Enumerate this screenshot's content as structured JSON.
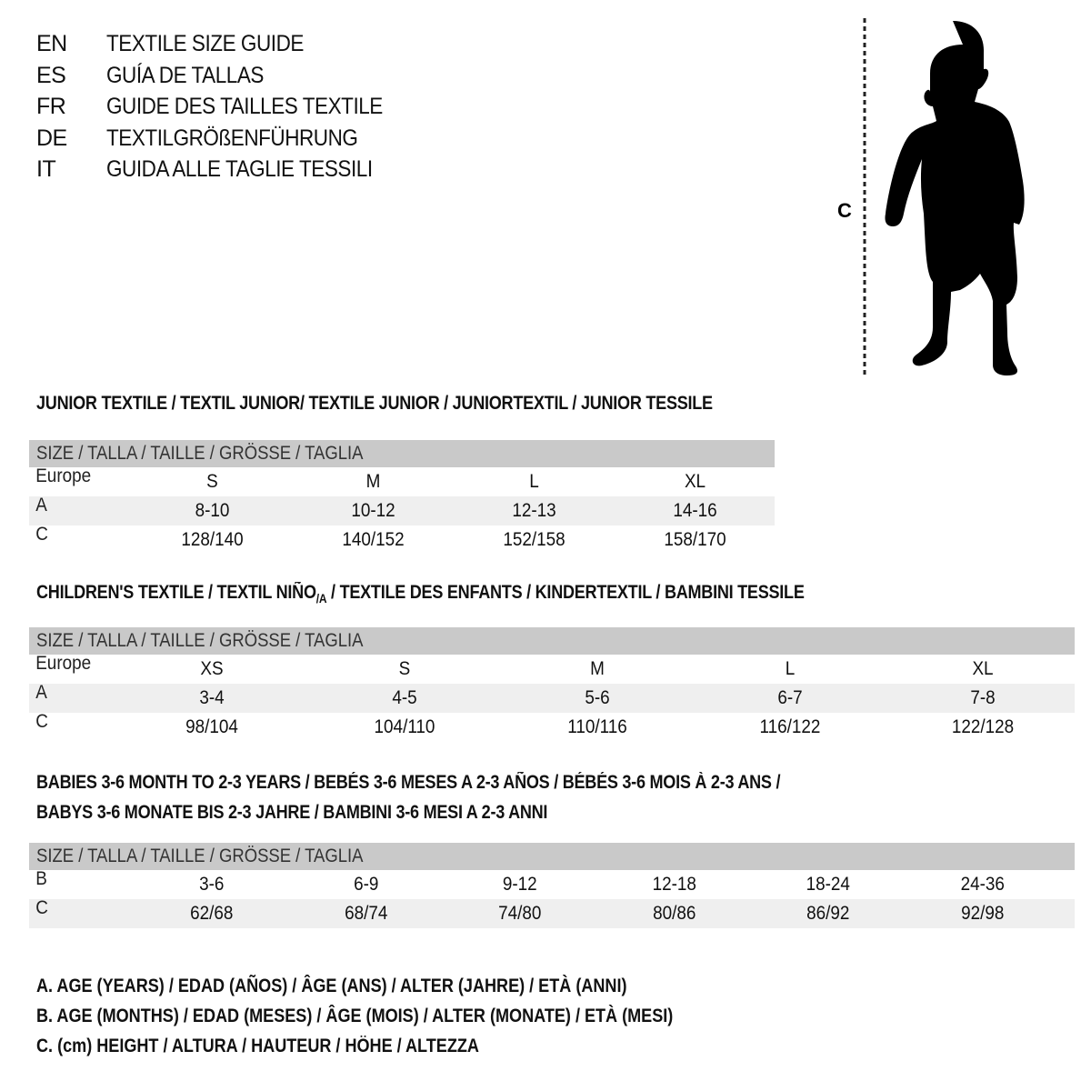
{
  "titles": [
    {
      "code": "EN",
      "text": "TEXTILE SIZE GUIDE"
    },
    {
      "code": "ES",
      "text": "GUÍA DE TALLAS"
    },
    {
      "code": "FR",
      "text": "GUIDE DES TAILLES TEXTILE"
    },
    {
      "code": "DE",
      "text": "TEXTILGRÖßENFÜHRUNG"
    },
    {
      "code": "IT",
      "text": "GUIDA ALLE TAGLIE TESSILI"
    }
  ],
  "figure": {
    "label": "C",
    "icon": "child-silhouette"
  },
  "junior": {
    "title": "JUNIOR TEXTILE / TEXTIL JUNIOR/ TEXTILE JUNIOR / JUNIORTEXTIL / JUNIOR TESSILE",
    "header": "SIZE / TALLA / TAILLE / GRÖSSE / TAGLIA",
    "rows": [
      {
        "label": "Europe",
        "cells": [
          "S",
          "M",
          "L",
          "XL"
        ]
      },
      {
        "label": "A",
        "cells": [
          "8-10",
          "10-12",
          "12-13",
          "14-16"
        ]
      },
      {
        "label": "C",
        "cells": [
          "128/140",
          "140/152",
          "152/158",
          "158/170"
        ]
      }
    ]
  },
  "children": {
    "title_a": "CHILDREN'S TEXTILE / TEXTIL NIÑO",
    "title_sub": "/A",
    "title_b": " / TEXTILE DES ENFANTS / KINDERTEXTIL / BAMBINI TESSILE",
    "header": "SIZE / TALLA / TAILLE / GRÖSSE / TAGLIA",
    "rows": [
      {
        "label": "Europe",
        "cells": [
          "XS",
          "S",
          "M",
          "L",
          "XL"
        ]
      },
      {
        "label": "A",
        "cells": [
          "3-4",
          "4-5",
          "5-6",
          "6-7",
          "7-8"
        ]
      },
      {
        "label": "C",
        "cells": [
          "98/104",
          "104/110",
          "110/116",
          "116/122",
          "122/128"
        ]
      }
    ]
  },
  "babies": {
    "title_1": "BABIES 3-6 MONTH TO 2-3 YEARS / BEBÉS 3-6 MESES A 2-3 AÑOS / BÉBÉS 3-6 MOIS À 2-3 ANS /",
    "title_2": "BABYS 3-6 MONATE BIS 2-3 JAHRE / BAMBINI 3-6 MESI A 2-3 ANNI",
    "header": "SIZE / TALLA / TAILLE / GRÖSSE / TAGLIA",
    "rows": [
      {
        "label": "B",
        "cells": [
          "3-6",
          "6-9",
          "9-12",
          "12-18",
          "18-24",
          "24-36"
        ]
      },
      {
        "label": "C",
        "cells": [
          "62/68",
          "68/74",
          "74/80",
          "80/86",
          "86/92",
          "92/98"
        ]
      }
    ]
  },
  "legend": [
    "A. AGE (YEARS) / EDAD (AÑOS) / ÂGE (ANS) / ALTER (JAHRE) / ETÀ (ANNI)",
    "B. AGE (MONTHS) / EDAD (MESES) / ÂGE (MOIS) / ALTER (MONATE) / ETÀ (MESI)",
    "C. (cm) HEIGHT / ALTURA / HAUTEUR / HÖHE / ALTEZZA"
  ],
  "colors": {
    "header_bg": "#c9c9c9",
    "stripe_bg": "#efefef",
    "text": "#111111"
  }
}
